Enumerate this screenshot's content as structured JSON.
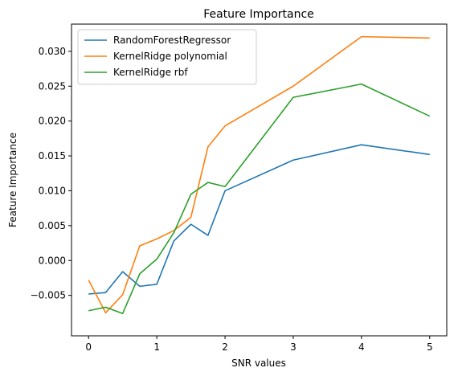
{
  "chart_data": {
    "type": "line",
    "title": "Feature Importance",
    "xlabel": "SNR values",
    "ylabel": "Feature Importance",
    "x": [
      0,
      0.25,
      0.5,
      0.75,
      1,
      1.25,
      1.5,
      1.75,
      2,
      3,
      4,
      5
    ],
    "xlim": [
      -0.25,
      5.25
    ],
    "ylim": [
      -0.0108,
      0.0339
    ],
    "xticks": [
      0,
      1,
      2,
      3,
      4,
      5
    ],
    "xtick_labels": [
      "0",
      "1",
      "2",
      "3",
      "4",
      "5"
    ],
    "yticks": [
      -0.005,
      0.0,
      0.005,
      0.01,
      0.015,
      0.02,
      0.025,
      0.03
    ],
    "ytick_labels": [
      "−0.005",
      "0.000",
      "0.005",
      "0.010",
      "0.015",
      "0.020",
      "0.025",
      "0.030"
    ],
    "legend_position": "upper-left",
    "grid": false,
    "series": [
      {
        "name": "RandomForestRegressor",
        "color": "#1f77b4",
        "values": [
          -0.0048,
          -0.0046,
          -0.0016,
          -0.0037,
          -0.0034,
          0.0028,
          0.0052,
          0.0036,
          0.01,
          0.0144,
          0.0166,
          0.0152
        ]
      },
      {
        "name": "KernelRidge polynomial",
        "color": "#ff7f0e",
        "values": [
          -0.0028,
          -0.0075,
          -0.0049,
          0.0021,
          0.0031,
          0.0043,
          0.0062,
          0.0163,
          0.0193,
          0.025,
          0.0321,
          0.0319
        ]
      },
      {
        "name": "KernelRidge rbf",
        "color": "#2ca02c",
        "values": [
          -0.0072,
          -0.0067,
          -0.0076,
          -0.0019,
          0.0002,
          0.004,
          0.0095,
          0.0112,
          0.0106,
          0.0234,
          0.0253,
          0.0207
        ]
      }
    ]
  }
}
